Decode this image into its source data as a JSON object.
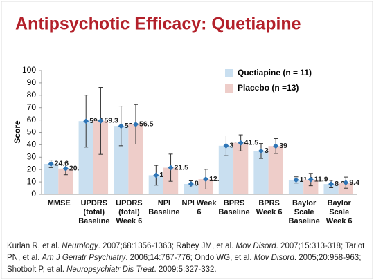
{
  "chart_data": {
    "type": "bar",
    "title": "Antipsychotic Efficacy: Quetiapine",
    "y_label": "Score",
    "categories": [
      "MMSE",
      "UPDRS (total) Baseline",
      "UPDRS (total) Week 6",
      "NPI Baseline",
      "NPI Week 6",
      "BPRS Baseline",
      "BPRS Week 6",
      "Baylor Scale Baseline",
      "Baylor Scale Week 6"
    ],
    "series": [
      {
        "name": "Quetiapine (n = 11)",
        "color": "#c9dff0",
        "marker_color": "#2e75b6",
        "values": [
          24.6,
          59.1,
          55.2,
          15.4,
          8.4,
          39.2,
          35,
          11.6,
          8.3
        ],
        "errors": [
          3,
          21,
          16,
          8,
          2.5,
          8,
          6,
          2.5,
          3
        ]
      },
      {
        "name": "Placebo (n =13)",
        "color": "#eecdc9",
        "marker_color": "#2e75b6",
        "values": [
          20.8,
          59.3,
          56.5,
          21.5,
          12.2,
          41.5,
          39,
          11.9,
          9.4
        ],
        "errors": [
          5,
          27,
          16,
          11,
          8,
          6.5,
          6,
          5,
          4.5
        ]
      }
    ],
    "ylim": [
      0,
      100
    ],
    "yticks": [
      0,
      10,
      20,
      30,
      40,
      50,
      60,
      70,
      80,
      90,
      100
    ],
    "legend": "top-right"
  },
  "references": [
    "Kurlan R, et al. ",
    "Neurology",
    ". 2007;68:1356-1363; Rabey JM, et al. ",
    "Mov Disord",
    ". 2007;15:313-318; Tariot PN, et al. ",
    "Am J Geriatr Psychiatry",
    ". 2006;14:767-776; Ondo WG, et al. ",
    "Mov Disord",
    ". 2005;20:958-963; Shotbolt P, et al. ",
    "Neuropsychiatr Dis Treat",
    ". 2009:5:327-332."
  ]
}
